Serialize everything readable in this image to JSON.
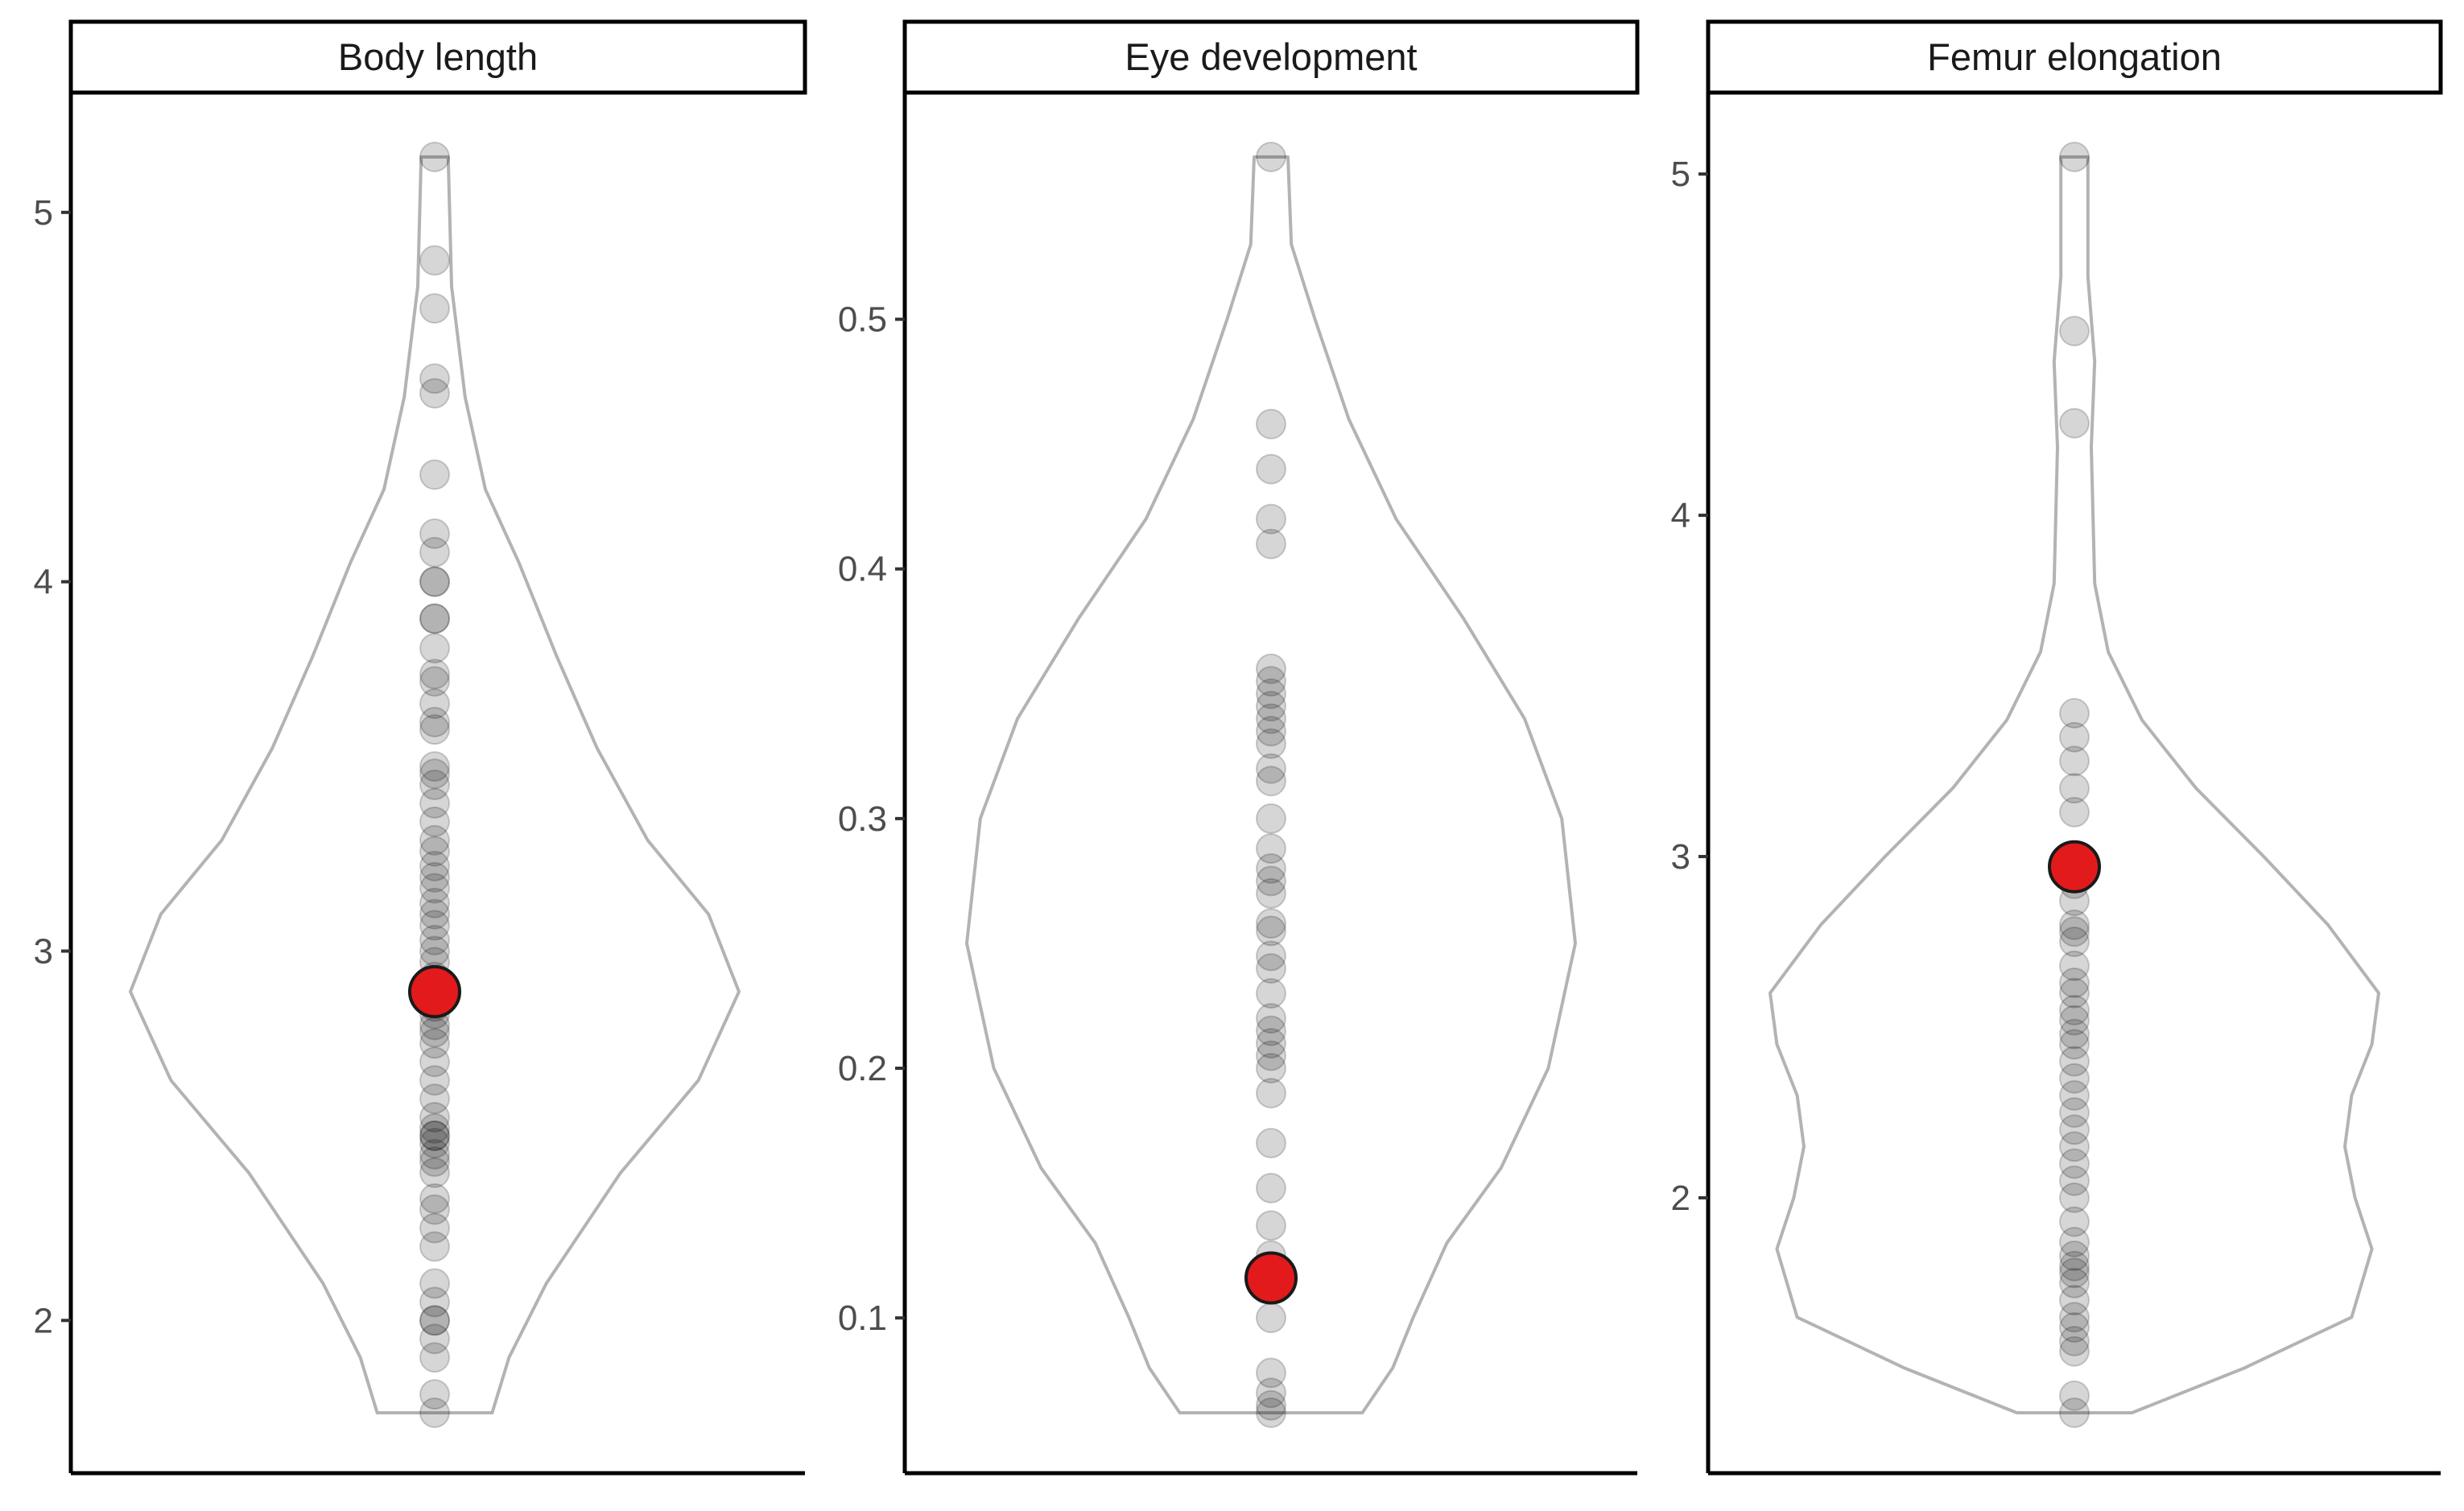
{
  "chart_data": [
    {
      "type": "scatter",
      "panel_title": "Body length",
      "y_ticks": [
        2,
        3,
        4,
        5
      ],
      "y_tick_labels": [
        "2",
        "3",
        "4",
        "5"
      ],
      "ylim": [
        1.6,
        5.3
      ],
      "grid": false,
      "highlight_value": 2.89,
      "points": [
        1.75,
        1.8,
        1.9,
        1.95,
        2.0,
        2.0,
        2.05,
        2.1,
        2.2,
        2.25,
        2.3,
        2.33,
        2.4,
        2.43,
        2.45,
        2.48,
        2.5,
        2.5,
        2.52,
        2.55,
        2.6,
        2.65,
        2.7,
        2.75,
        2.78,
        2.8,
        2.83,
        2.85,
        2.88,
        2.9,
        2.93,
        2.97,
        3.0,
        3.03,
        3.07,
        3.1,
        3.13,
        3.17,
        3.2,
        3.23,
        3.27,
        3.3,
        3.35,
        3.4,
        3.45,
        3.48,
        3.5,
        3.6,
        3.62,
        3.67,
        3.73,
        3.75,
        3.82,
        3.9,
        3.9,
        4.0,
        4.0,
        4.08,
        4.13,
        4.29,
        4.51,
        4.55,
        4.74,
        4.87,
        5.15
      ],
      "violin": {
        "min": 1.75,
        "max": 5.15,
        "half_widths": [
          [
            1.75,
            0.17
          ],
          [
            1.9,
            0.22
          ],
          [
            2.1,
            0.33
          ],
          [
            2.4,
            0.55
          ],
          [
            2.65,
            0.78
          ],
          [
            2.89,
            0.9
          ],
          [
            3.1,
            0.81
          ],
          [
            3.3,
            0.63
          ],
          [
            3.55,
            0.48
          ],
          [
            3.8,
            0.36
          ],
          [
            4.05,
            0.25
          ],
          [
            4.25,
            0.15
          ],
          [
            4.5,
            0.09
          ],
          [
            4.8,
            0.05
          ],
          [
            5.15,
            0.04
          ]
        ]
      }
    },
    {
      "type": "scatter",
      "panel_title": "Eye development",
      "y_ticks": [
        0.1,
        0.2,
        0.3,
        0.4,
        0.5
      ],
      "y_tick_labels": [
        "0.1",
        "0.2",
        "0.3",
        "0.4",
        "0.5"
      ],
      "ylim": [
        0.035,
        0.6
      ],
      "grid": false,
      "highlight_value": 0.116,
      "points": [
        0.062,
        0.065,
        0.07,
        0.078,
        0.1,
        0.125,
        0.137,
        0.152,
        0.17,
        0.19,
        0.2,
        0.205,
        0.21,
        0.215,
        0.22,
        0.23,
        0.24,
        0.245,
        0.255,
        0.258,
        0.27,
        0.275,
        0.28,
        0.288,
        0.3,
        0.315,
        0.32,
        0.33,
        0.335,
        0.34,
        0.345,
        0.35,
        0.355,
        0.36,
        0.41,
        0.42,
        0.44,
        0.458,
        0.565
      ],
      "violin": {
        "min": 0.062,
        "max": 0.565,
        "half_widths": [
          [
            0.062,
            0.27
          ],
          [
            0.08,
            0.36
          ],
          [
            0.1,
            0.42
          ],
          [
            0.13,
            0.52
          ],
          [
            0.16,
            0.68
          ],
          [
            0.2,
            0.82
          ],
          [
            0.25,
            0.9
          ],
          [
            0.3,
            0.86
          ],
          [
            0.34,
            0.75
          ],
          [
            0.38,
            0.57
          ],
          [
            0.42,
            0.37
          ],
          [
            0.46,
            0.23
          ],
          [
            0.5,
            0.13
          ],
          [
            0.53,
            0.06
          ],
          [
            0.565,
            0.05
          ]
        ]
      }
    },
    {
      "type": "scatter",
      "panel_title": "Femur elongation",
      "y_ticks": [
        2,
        3,
        4,
        5
      ],
      "y_tick_labels": [
        "2",
        "3",
        "4",
        "5"
      ],
      "ylim": [
        1.15,
        5.25
      ],
      "grid": false,
      "highlight_value": 2.97,
      "points": [
        1.37,
        1.42,
        1.55,
        1.58,
        1.62,
        1.65,
        1.7,
        1.75,
        1.78,
        1.8,
        1.83,
        1.87,
        1.93,
        2.0,
        2.05,
        2.1,
        2.15,
        2.2,
        2.25,
        2.3,
        2.35,
        2.4,
        2.45,
        2.48,
        2.52,
        2.55,
        2.6,
        2.63,
        2.68,
        2.75,
        2.78,
        2.8,
        2.87,
        2.92,
        2.97,
        3.13,
        3.2,
        3.28,
        3.35,
        3.42,
        4.27,
        4.54,
        5.05
      ],
      "violin": {
        "min": 1.37,
        "max": 5.05,
        "half_widths": [
          [
            1.37,
            0.17
          ],
          [
            1.5,
            0.5
          ],
          [
            1.65,
            0.82
          ],
          [
            1.85,
            0.88
          ],
          [
            2.0,
            0.83
          ],
          [
            2.15,
            0.8
          ],
          [
            2.3,
            0.82
          ],
          [
            2.45,
            0.88
          ],
          [
            2.6,
            0.9
          ],
          [
            2.8,
            0.75
          ],
          [
            3.0,
            0.56
          ],
          [
            3.2,
            0.36
          ],
          [
            3.4,
            0.2
          ],
          [
            3.6,
            0.1
          ],
          [
            3.8,
            0.06
          ],
          [
            4.2,
            0.05
          ],
          [
            4.45,
            0.06
          ],
          [
            4.7,
            0.04
          ],
          [
            5.05,
            0.04
          ]
        ]
      }
    }
  ]
}
